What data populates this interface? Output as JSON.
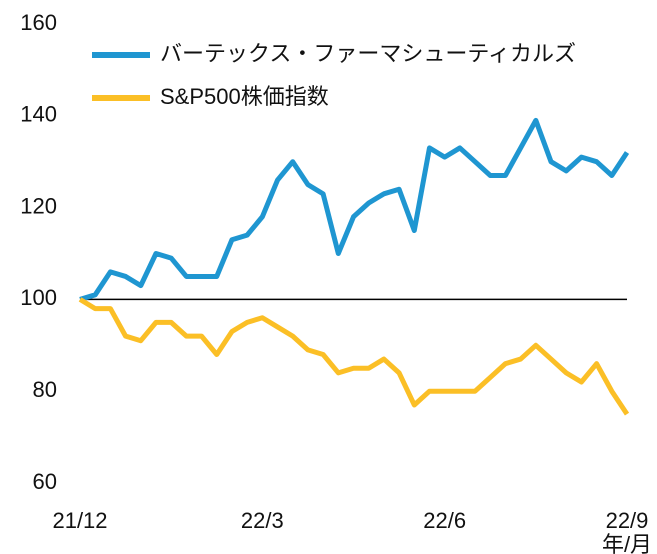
{
  "chart_data": {
    "type": "line",
    "x": [
      0,
      0.25,
      0.5,
      0.75,
      1,
      1.25,
      1.5,
      1.75,
      2,
      2.25,
      2.5,
      2.75,
      3,
      3.25,
      3.5,
      3.75,
      4,
      4.25,
      4.5,
      4.75,
      5,
      5.25,
      5.5,
      5.75,
      6,
      6.25,
      6.5,
      6.75,
      7,
      7.25,
      7.5,
      7.75,
      8,
      8.25,
      8.5,
      8.75,
      9
    ],
    "series": [
      {
        "name": "バーテックス・ファーマシューティカルズ",
        "color": "#1f96d1",
        "values": [
          100,
          101,
          106,
          105,
          103,
          110,
          109,
          105,
          105,
          105,
          113,
          114,
          118,
          126,
          130,
          125,
          123,
          110,
          118,
          121,
          123,
          124,
          115,
          133,
          131,
          133,
          130,
          127,
          127,
          133,
          139,
          130,
          128,
          131,
          130,
          127,
          132
        ]
      },
      {
        "name": "S&P500株価指数",
        "color": "#fbbf26",
        "values": [
          100,
          98,
          98,
          92,
          91,
          95,
          95,
          92,
          92,
          88,
          93,
          95,
          96,
          94,
          92,
          89,
          88,
          84,
          85,
          85,
          87,
          84,
          77,
          80,
          80,
          80,
          80,
          83,
          86,
          87,
          90,
          87,
          84,
          82,
          86,
          80,
          75
        ]
      }
    ],
    "xlim": [
      0,
      9
    ],
    "xticks": [
      {
        "value": 0,
        "label": "21/12"
      },
      {
        "value": 3,
        "label": "22/3"
      },
      {
        "value": 6,
        "label": "22/6"
      },
      {
        "value": 9,
        "label": "22/9"
      }
    ],
    "x_label": "年/月",
    "ylim": [
      60,
      160
    ],
    "yticks": [
      60,
      80,
      100,
      120,
      140,
      160
    ],
    "reference_line": 100
  }
}
